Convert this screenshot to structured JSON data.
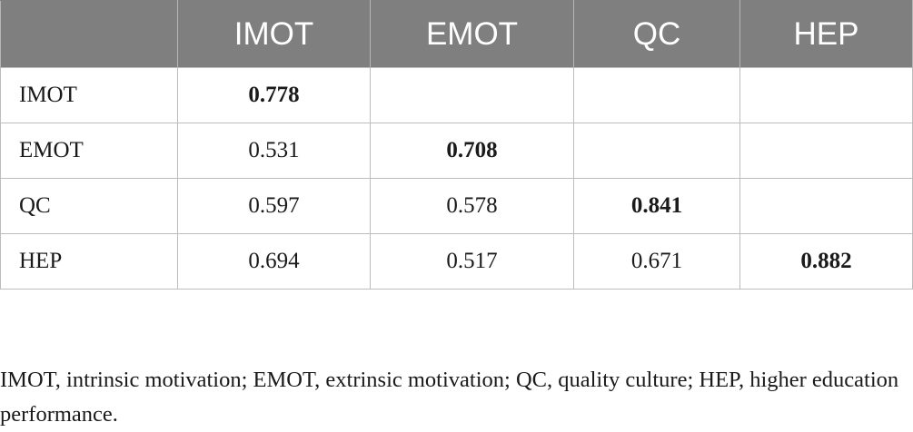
{
  "table": {
    "header": [
      "",
      "IMOT",
      "EMOT",
      "QC",
      "HEP"
    ],
    "rows": [
      {
        "label": "IMOT",
        "cells": [
          "0.778",
          "",
          "",
          ""
        ]
      },
      {
        "label": "EMOT",
        "cells": [
          "0.531",
          "0.708",
          "",
          ""
        ]
      },
      {
        "label": "QC",
        "cells": [
          "0.597",
          "0.578",
          "0.841",
          ""
        ]
      },
      {
        "label": "HEP",
        "cells": [
          "0.694",
          "0.517",
          "0.671",
          "0.882"
        ]
      }
    ],
    "bold_diagonal": true
  },
  "footnote": "IMOT, intrinsic motivation; EMOT, extrinsic motivation; QC, quality culture; HEP, higher education performance.",
  "colors": {
    "header_bg": "#7f7f7f",
    "header_text": "#ffffff",
    "grid_line": "#bdbdbd",
    "text": "#1a1a1a"
  }
}
